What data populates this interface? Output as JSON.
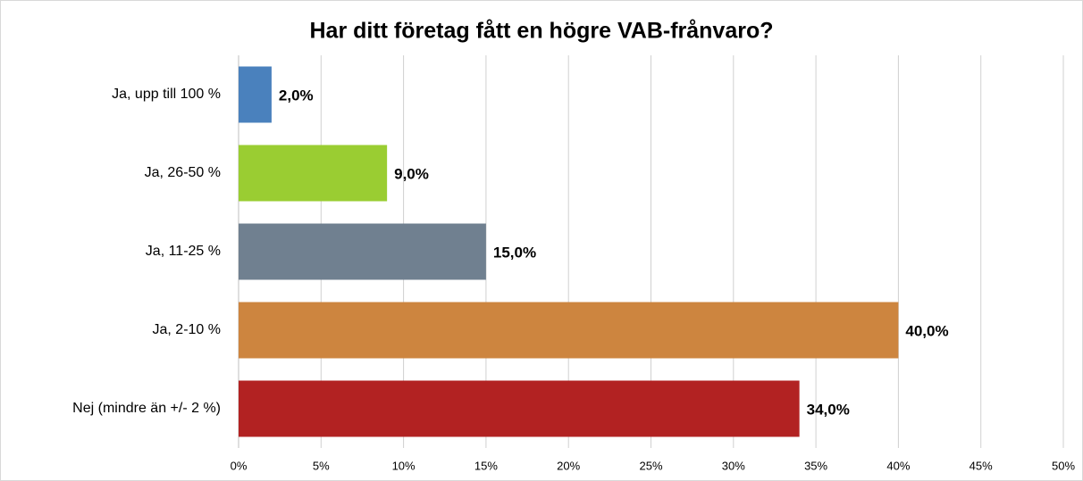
{
  "chart_data": {
    "type": "bar",
    "orientation": "horizontal",
    "title": "Har ditt företag fått en högre VAB-frånvaro?",
    "categories": [
      "Ja, upp till 100 %",
      "Ja, 26-50 %",
      "Ja, 11-25 %",
      "Ja, 2-10 %",
      "Nej (mindre än +/- 2 %)"
    ],
    "values": [
      2,
      9,
      15,
      40,
      34
    ],
    "value_labels": [
      "2,0%",
      "9,0%",
      "15,0%",
      "40,0%",
      "34,0%"
    ],
    "colors": [
      "#4a81bd",
      "#9acd32",
      "#708090",
      "#cd853f",
      "#b22222"
    ],
    "xlim": [
      0,
      50
    ],
    "xticks": [
      {
        "value": 0,
        "label": "0%"
      },
      {
        "value": 5,
        "label": "5%"
      },
      {
        "value": 10,
        "label": "10%"
      },
      {
        "value": 15,
        "label": "15%"
      },
      {
        "value": 20,
        "label": "20%"
      },
      {
        "value": 25,
        "label": "25%"
      },
      {
        "value": 30,
        "label": "30%"
      },
      {
        "value": 35,
        "label": "35%"
      },
      {
        "value": 40,
        "label": "40%"
      },
      {
        "value": 45,
        "label": "45%"
      },
      {
        "value": 50,
        "label": "50%"
      }
    ],
    "grid": true
  }
}
